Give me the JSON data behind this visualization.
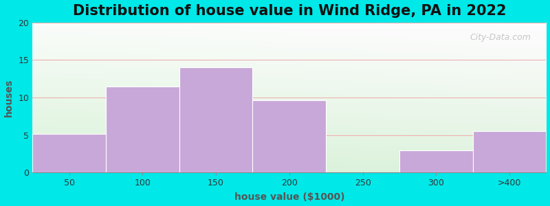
{
  "title": "Distribution of house value in Wind Ridge, PA in 2022",
  "xlabel": "house value ($1000)",
  "ylabel": "houses",
  "categories": [
    "50",
    "100",
    "150",
    "200",
    "250",
    "300",
    ">400"
  ],
  "values": [
    5.2,
    11.5,
    14.0,
    9.6,
    0.0,
    3.0,
    5.5
  ],
  "bar_color": "#c8a8d8",
  "ylim": [
    0,
    20
  ],
  "yticks": [
    0,
    5,
    10,
    15,
    20
  ],
  "background_color": "#00e8e8",
  "watermark_text": "City-Data.com",
  "title_fontsize": 15,
  "label_fontsize": 10
}
